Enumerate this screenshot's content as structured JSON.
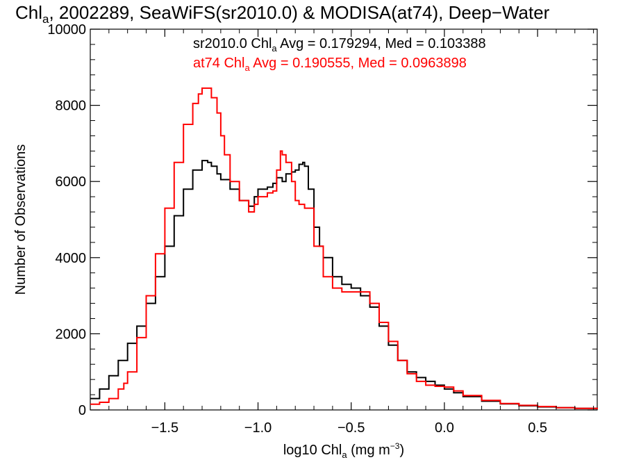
{
  "chart_data": {
    "type": "line",
    "title": {
      "prefix": "Chl",
      "sub": "a",
      "suffix": ", 2002289, SeaWiFS(sr2010.0) & MODISA(at74), Deep−Water"
    },
    "xlabel": {
      "prefix": "log10 Chl",
      "sub": "a",
      "mid": " (mg m",
      "sup": "−3",
      "end": ")"
    },
    "ylabel": "Number of Observations",
    "xlim": [
      -1.9,
      0.82
    ],
    "ylim": [
      0,
      10000
    ],
    "x_ticks": [
      -1.5,
      -1.0,
      -0.5,
      0.0,
      0.5
    ],
    "x_tick_labels": [
      "−1.5",
      "−1.0",
      "−0.5",
      "0.0",
      "0.5"
    ],
    "y_ticks": [
      0,
      2000,
      4000,
      6000,
      8000,
      10000
    ],
    "y_tick_labels": [
      "0",
      "2000",
      "4000",
      "6000",
      "8000",
      "10000"
    ],
    "grid": false,
    "annotations": [
      {
        "prefix": "sr2010.0 Chl",
        "sub": "a",
        "suffix": " Avg = 0.179294, Med = 0.103388",
        "color": "#000000"
      },
      {
        "prefix": "at74 Chl",
        "sub": "a",
        "suffix": " Avg = 0.190555, Med = 0.0963898",
        "color": "#ff0000"
      }
    ],
    "series": [
      {
        "color": "#000000",
        "x": [
          -1.9,
          -1.85,
          -1.8,
          -1.75,
          -1.7,
          -1.65,
          -1.6,
          -1.55,
          -1.5,
          -1.45,
          -1.4,
          -1.35,
          -1.3,
          -1.27,
          -1.25,
          -1.22,
          -1.2,
          -1.15,
          -1.1,
          -1.05,
          -1.02,
          -1.0,
          -0.95,
          -0.92,
          -0.9,
          -0.87,
          -0.85,
          -0.82,
          -0.8,
          -0.78,
          -0.76,
          -0.75,
          -0.73,
          -0.7,
          -0.67,
          -0.65,
          -0.6,
          -0.55,
          -0.5,
          -0.45,
          -0.4,
          -0.35,
          -0.3,
          -0.25,
          -0.2,
          -0.15,
          -0.1,
          -0.05,
          0.0,
          0.05,
          0.1,
          0.2,
          0.3,
          0.4,
          0.5,
          0.6,
          0.7,
          0.82
        ],
        "y": [
          300,
          550,
          900,
          1300,
          1750,
          2200,
          2800,
          3500,
          4300,
          5100,
          5800,
          6300,
          6550,
          6500,
          6400,
          6200,
          6050,
          5800,
          5500,
          5350,
          5600,
          5800,
          5850,
          5950,
          6100,
          6000,
          6200,
          6250,
          6300,
          6450,
          6500,
          6400,
          5800,
          4800,
          4300,
          4000,
          3500,
          3300,
          3200,
          3000,
          2700,
          2200,
          1700,
          1300,
          1000,
          850,
          750,
          650,
          550,
          450,
          350,
          230,
          160,
          110,
          80,
          60,
          40,
          20
        ]
      },
      {
        "color": "#ff0000",
        "x": [
          -1.9,
          -1.85,
          -1.8,
          -1.75,
          -1.72,
          -1.7,
          -1.65,
          -1.6,
          -1.55,
          -1.5,
          -1.45,
          -1.4,
          -1.35,
          -1.32,
          -1.3,
          -1.27,
          -1.25,
          -1.22,
          -1.2,
          -1.18,
          -1.15,
          -1.1,
          -1.05,
          -1.02,
          -1.0,
          -0.95,
          -0.92,
          -0.9,
          -0.88,
          -0.87,
          -0.85,
          -0.82,
          -0.8,
          -0.78,
          -0.75,
          -0.7,
          -0.65,
          -0.6,
          -0.55,
          -0.5,
          -0.45,
          -0.4,
          -0.35,
          -0.3,
          -0.25,
          -0.2,
          -0.15,
          -0.1,
          -0.05,
          0.0,
          0.05,
          0.1,
          0.2,
          0.3,
          0.4,
          0.5,
          0.6,
          0.7,
          0.82
        ],
        "y": [
          150,
          200,
          300,
          550,
          700,
          1000,
          1900,
          3000,
          4100,
          5300,
          6500,
          7500,
          8050,
          8300,
          8450,
          8450,
          8200,
          7800,
          7200,
          6700,
          6000,
          5500,
          5200,
          5400,
          5600,
          5700,
          5750,
          6300,
          6800,
          6700,
          6500,
          6000,
          5500,
          5400,
          5300,
          4300,
          3500,
          3200,
          3100,
          3100,
          3100,
          2800,
          2300,
          1800,
          1300,
          950,
          750,
          650,
          620,
          600,
          500,
          380,
          250,
          170,
          120,
          90,
          60,
          40,
          20
        ]
      }
    ]
  }
}
